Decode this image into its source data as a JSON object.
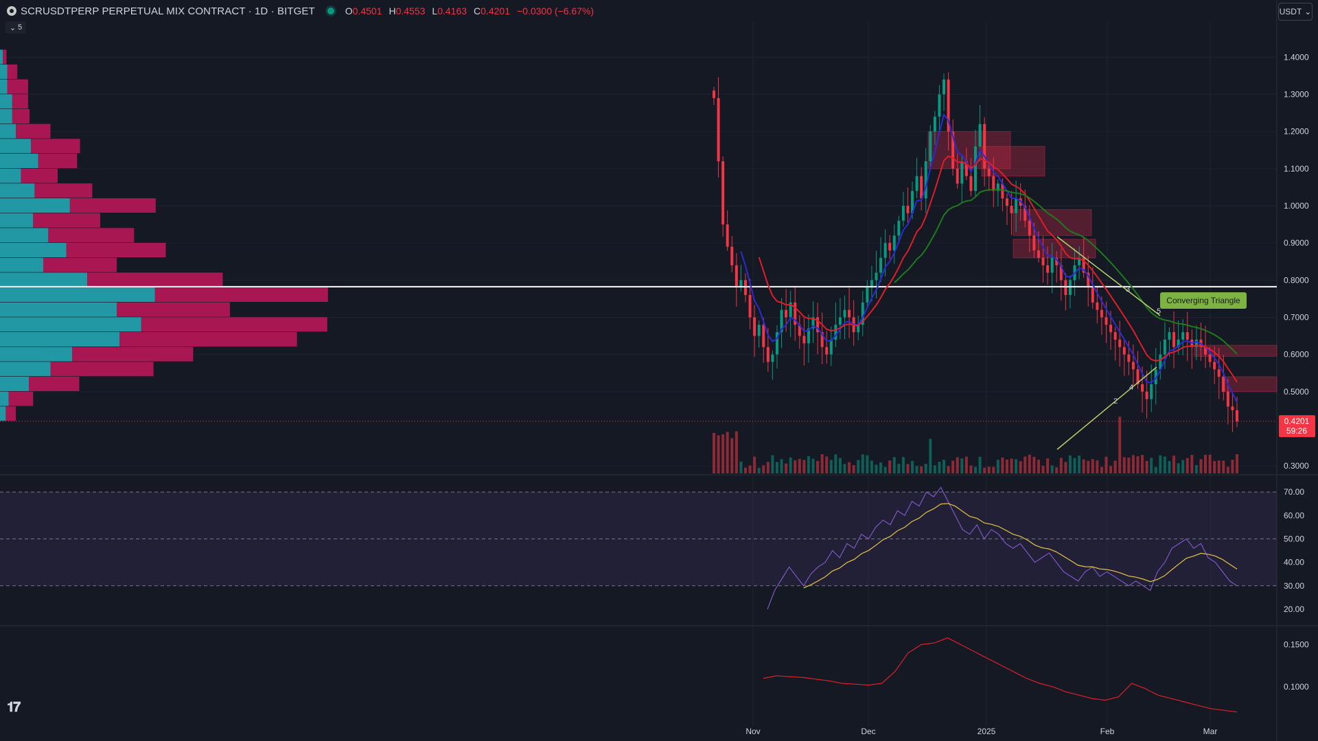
{
  "header": {
    "title": "SCRUSDTPERP PERPETUAL MIX CONTRACT · 1D · BITGET",
    "open_key": "O",
    "open": "0.4501",
    "high_key": "H",
    "high": "0.4553",
    "low_key": "L",
    "low": "0.4163",
    "close_key": "C",
    "close": "0.4201",
    "change": "−0.0300 (−6.67%)",
    "collapse_count": "5",
    "currency": "USDT"
  },
  "colors": {
    "background": "#151924",
    "bull": "#089981",
    "bear": "#f23645",
    "vp_up": "#22a6b3",
    "vp_down": "#c2185b",
    "ema_fast": "#2b2bd6",
    "ema_mid": "#e01e2a",
    "ema_slow": "#1f7a1f",
    "rsi": "#7e57c2",
    "rsi_ma": "#e8c547"
  },
  "chart_data": [
    {
      "type": "candlestick",
      "title": "SCRUSDTPERP",
      "y_ticks": [
        "1.4000",
        "1.3000",
        "1.2000",
        "1.1000",
        "1.0000",
        "0.9000",
        "0.8000",
        "0.7000",
        "0.6000",
        "0.5000",
        "0.3000"
      ],
      "y_tick_values": [
        1.4,
        1.3,
        1.2,
        1.1,
        1.0,
        0.9,
        0.8,
        0.7,
        0.6,
        0.5,
        0.3
      ],
      "ylim": [
        0.28,
        1.48
      ],
      "x_labels": [
        "Nov",
        "Dec",
        "2025",
        "Feb",
        "Mar"
      ],
      "last_price": "0.4201",
      "countdown": "59:26",
      "horizontal_line": 0.7825,
      "annotation": "Converging Triangle",
      "pattern_points": [
        "2",
        "3",
        "4",
        "5"
      ],
      "close_series_start": "2024-10-23",
      "close": [
        1.29,
        1.12,
        0.95,
        0.89,
        0.84,
        0.78,
        0.8,
        0.76,
        0.7,
        0.65,
        0.68,
        0.62,
        0.58,
        0.6,
        0.66,
        0.72,
        0.7,
        0.74,
        0.68,
        0.65,
        0.63,
        0.67,
        0.7,
        0.66,
        0.62,
        0.6,
        0.64,
        0.68,
        0.7,
        0.72,
        0.7,
        0.66,
        0.68,
        0.74,
        0.78,
        0.8,
        0.82,
        0.86,
        0.9,
        0.88,
        0.92,
        0.96,
        1.0,
        0.98,
        1.04,
        1.08,
        1.02,
        1.12,
        1.2,
        1.24,
        1.3,
        1.34,
        1.2,
        1.1,
        1.06,
        1.12,
        1.08,
        1.04,
        1.16,
        1.22,
        1.1,
        1.08,
        1.04,
        1.06,
        1.02,
        1.0,
        0.98,
        1.02,
        1.0,
        0.96,
        0.92,
        0.88,
        0.86,
        0.84,
        0.82,
        0.86,
        0.84,
        0.8,
        0.76,
        0.8,
        0.84,
        0.86,
        0.82,
        0.78,
        0.74,
        0.72,
        0.7,
        0.68,
        0.66,
        0.64,
        0.62,
        0.6,
        0.58,
        0.56,
        0.52,
        0.5,
        0.48,
        0.52,
        0.56,
        0.6,
        0.64,
        0.66,
        0.62,
        0.64,
        0.66,
        0.64,
        0.62,
        0.64,
        0.62,
        0.6,
        0.58,
        0.56,
        0.54,
        0.5,
        0.46,
        0.45,
        0.42
      ],
      "vp_levels": [
        {
          "price": 0.44,
          "up": 8,
          "down": 14
        },
        {
          "price": 0.48,
          "up": 12,
          "down": 34
        },
        {
          "price": 0.52,
          "up": 40,
          "down": 70
        },
        {
          "price": 0.56,
          "up": 70,
          "down": 143
        },
        {
          "price": 0.6,
          "up": 100,
          "down": 168
        },
        {
          "price": 0.64,
          "up": 166,
          "down": 246
        },
        {
          "price": 0.68,
          "up": 196,
          "down": 258
        },
        {
          "price": 0.72,
          "up": 162,
          "down": 157
        },
        {
          "price": 0.76,
          "up": 215,
          "down": 240
        },
        {
          "price": 0.8,
          "up": 121,
          "down": 188
        },
        {
          "price": 0.84,
          "up": 60,
          "down": 102
        },
        {
          "price": 0.88,
          "up": 92,
          "down": 138
        },
        {
          "price": 0.92,
          "up": 67,
          "down": 119
        },
        {
          "price": 0.96,
          "up": 46,
          "down": 93
        },
        {
          "price": 1.0,
          "up": 97,
          "down": 119
        },
        {
          "price": 1.04,
          "up": 48,
          "down": 80
        },
        {
          "price": 1.08,
          "up": 29,
          "down": 51
        },
        {
          "price": 1.12,
          "up": 53,
          "down": 54
        },
        {
          "price": 1.16,
          "up": 43,
          "down": 68
        },
        {
          "price": 1.2,
          "up": 22,
          "down": 48
        },
        {
          "price": 1.24,
          "up": 17,
          "down": 24
        },
        {
          "price": 1.28,
          "up": 17,
          "down": 22
        },
        {
          "price": 1.32,
          "up": 10,
          "down": 29
        },
        {
          "price": 1.36,
          "up": 10,
          "down": 14
        },
        {
          "price": 1.4,
          "up": 4,
          "down": 5
        }
      ]
    },
    {
      "type": "line",
      "title": "RSI",
      "y_ticks": [
        "70.00",
        "60.00",
        "50.00",
        "40.00",
        "30.00",
        "20.00"
      ],
      "y_tick_values": [
        70,
        60,
        50,
        40,
        30,
        20
      ],
      "ylim": [
        15,
        75
      ],
      "band": [
        30,
        70
      ],
      "values": [
        20,
        28,
        33,
        38,
        34,
        30,
        35,
        38,
        40,
        45,
        42,
        48,
        46,
        52,
        50,
        55,
        58,
        56,
        62,
        60,
        66,
        64,
        70,
        68,
        72,
        66,
        60,
        54,
        52,
        56,
        50,
        54,
        52,
        48,
        46,
        48,
        44,
        40,
        42,
        44,
        40,
        36,
        34,
        32,
        36,
        38,
        34,
        36,
        34,
        32,
        30,
        32,
        30,
        28,
        36,
        40,
        46,
        48,
        50,
        46,
        48,
        42,
        40,
        36,
        32,
        30
      ]
    },
    {
      "type": "line",
      "title": "Volatility",
      "y_ticks": [
        "0.1500",
        "0.1000"
      ],
      "y_tick_values": [
        0.15,
        0.1
      ],
      "ylim": [
        0.06,
        0.17
      ],
      "values": [
        0.11,
        0.113,
        0.112,
        0.111,
        0.109,
        0.107,
        0.104,
        0.103,
        0.102,
        0.104,
        0.118,
        0.14,
        0.15,
        0.152,
        0.158,
        0.15,
        0.142,
        0.134,
        0.126,
        0.118,
        0.11,
        0.104,
        0.1,
        0.094,
        0.09,
        0.086,
        0.084,
        0.088,
        0.104,
        0.098,
        0.09,
        0.086,
        0.082,
        0.078,
        0.074,
        0.072,
        0.07
      ]
    }
  ]
}
